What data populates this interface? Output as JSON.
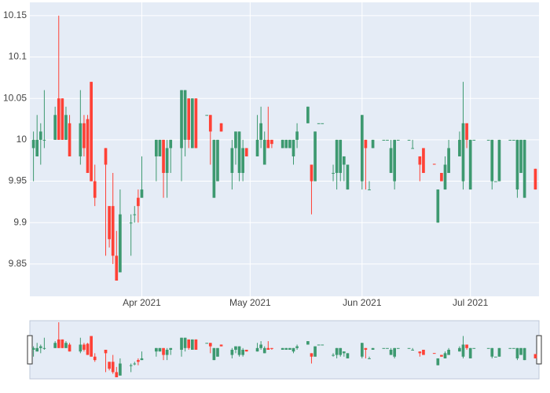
{
  "chart_data": {
    "type": "candlestick",
    "x": [
      "2021-03-02",
      "2021-03-03",
      "2021-03-04",
      "2021-03-05",
      "2021-03-08",
      "2021-03-09",
      "2021-03-10",
      "2021-03-11",
      "2021-03-12",
      "2021-03-15",
      "2021-03-16",
      "2021-03-17",
      "2021-03-18",
      "2021-03-19",
      "2021-03-22",
      "2021-03-23",
      "2021-03-24",
      "2021-03-25",
      "2021-03-26",
      "2021-03-29",
      "2021-03-30",
      "2021-03-31",
      "2021-04-01",
      "2021-04-05",
      "2021-04-06",
      "2021-04-07",
      "2021-04-08",
      "2021-04-09",
      "2021-04-12",
      "2021-04-13",
      "2021-04-14",
      "2021-04-15",
      "2021-04-16",
      "2021-04-19",
      "2021-04-20",
      "2021-04-21",
      "2021-04-22",
      "2021-04-23",
      "2021-04-26",
      "2021-04-27",
      "2021-04-28",
      "2021-04-29",
      "2021-04-30",
      "2021-05-03",
      "2021-05-04",
      "2021-05-05",
      "2021-05-06",
      "2021-05-07",
      "2021-05-10",
      "2021-05-11",
      "2021-05-12",
      "2021-05-13",
      "2021-05-14",
      "2021-05-17",
      "2021-05-18",
      "2021-05-19",
      "2021-05-20",
      "2021-05-21",
      "2021-05-24",
      "2021-05-25",
      "2021-05-26",
      "2021-05-27",
      "2021-05-28",
      "2021-06-01",
      "2021-06-02",
      "2021-06-03",
      "2021-06-04",
      "2021-06-07",
      "2021-06-08",
      "2021-06-09",
      "2021-06-10",
      "2021-06-11",
      "2021-06-14",
      "2021-06-15",
      "2021-06-17",
      "2021-06-18",
      "2021-06-21",
      "2021-06-22",
      "2021-06-23",
      "2021-06-24",
      "2021-06-25",
      "2021-06-28",
      "2021-06-29",
      "2021-06-30",
      "2021-07-01",
      "2021-07-02",
      "2021-07-06",
      "2021-07-07",
      "2021-07-08",
      "2021-07-09",
      "2021-07-12",
      "2021-07-13",
      "2021-07-14",
      "2021-07-15",
      "2021-07-16",
      "2021-07-19"
    ],
    "open": [
      9.99,
      9.98,
      10.0,
      10.0,
      10.0,
      10.05,
      10.05,
      10.0,
      10.02,
      9.98,
      10.02,
      10.025,
      10.07,
      9.95,
      9.99,
      9.92,
      9.92,
      9.86,
      9.84,
      9.9,
      9.91,
      9.93,
      9.93,
      9.98,
      9.98,
      10.0,
      9.96,
      9.99,
      9.99,
      10.0,
      10.05,
      9.99,
      10.05,
      10.03,
      10.03,
      9.93,
      9.95,
      10.02,
      9.96,
      9.99,
      9.96,
      9.96,
      9.99,
      9.98,
      10.0,
      9.97,
      10.0,
      10.0,
      9.99,
      9.99,
      9.99,
      9.98,
      10.0,
      10.02,
      9.97,
      9.95,
      10.02,
      10.02,
      9.96,
      9.96,
      9.96,
      9.97,
      9.94,
      9.95,
      10.0,
      9.94,
      9.99,
      10.0,
      10.0,
      9.96,
      9.95,
      10.0,
      10.0,
      9.99,
      9.98,
      9.99,
      9.971,
      9.9,
      9.96,
      9.94,
      9.96,
      9.98,
      9.95,
      10.02,
      9.94,
      10.0,
      10.0,
      9.95,
      9.95,
      9.95,
      10.0,
      10.0,
      9.94,
      9.96,
      9.93,
      9.965
    ],
    "high": [
      10.01,
      10.03,
      10.02,
      10.06,
      10.04,
      10.15,
      10.05,
      10.04,
      10.03,
      10.06,
      10.03,
      10.03,
      10.07,
      9.97,
      9.99,
      9.92,
      9.96,
      9.89,
      9.94,
      9.91,
      9.92,
      9.94,
      9.98,
      10.0,
      10.0,
      10.0,
      10.0,
      10.0,
      10.06,
      10.06,
      10.05,
      10.05,
      10.05,
      10.03,
      10.03,
      10.0,
      10.0,
      10.02,
      10.0,
      10.01,
      10.01,
      10.0,
      9.99,
      10.03,
      10.04,
      10.01,
      10.04,
      10.0,
      10.0,
      10.0,
      10.0,
      10.0,
      10.02,
      10.04,
      9.97,
      10.01,
      10.02,
      10.02,
      9.97,
      10.0,
      10.0,
      9.98,
      9.97,
      10.03,
      10.0,
      9.95,
      10.0,
      10.0,
      10.0,
      10.0,
      10.0,
      10.0,
      10.0,
      10.0,
      9.98,
      9.99,
      9.971,
      9.94,
      9.96,
      9.98,
      10.0,
      10.01,
      10.07,
      10.02,
      10.0,
      10.0,
      10.0,
      10.0,
      9.95,
      10.0,
      10.0,
      10.0,
      10.0,
      10.0,
      10.0,
      9.965
    ],
    "low": [
      9.95,
      9.98,
      9.97,
      9.99,
      10.0,
      10.0,
      10.0,
      10.0,
      9.98,
      9.97,
      9.98,
      9.96,
      9.95,
      9.92,
      9.86,
      9.87,
      9.85,
      9.83,
      9.84,
      9.86,
      9.9,
      9.9,
      9.93,
      9.95,
      9.98,
      9.93,
      9.93,
      9.96,
      9.95,
      9.98,
      9.99,
      9.99,
      9.99,
      10.03,
      9.97,
      9.93,
      9.95,
      10.01,
      9.94,
      9.97,
      9.95,
      9.95,
      9.98,
      9.98,
      9.99,
      9.97,
      9.99,
      9.99,
      9.99,
      9.99,
      9.99,
      9.97,
      9.99,
      10.02,
      9.91,
      9.95,
      10.02,
      10.02,
      9.95,
      9.94,
      9.95,
      9.95,
      9.94,
      9.94,
      9.94,
      9.94,
      9.99,
      10.0,
      10.0,
      9.96,
      9.94,
      10.0,
      10.0,
      9.99,
      9.95,
      9.96,
      9.97,
      9.9,
      9.95,
      9.94,
      9.96,
      9.98,
      9.94,
      9.99,
      9.94,
      10.0,
      10.0,
      9.94,
      9.95,
      9.95,
      10.0,
      10.0,
      9.93,
      9.96,
      9.93,
      9.94
    ],
    "close": [
      10.0,
      10.0,
      10.01,
      10.0,
      10.03,
      10.0,
      10.0,
      10.03,
      9.98,
      10.02,
      9.99,
      9.96,
      9.95,
      9.93,
      9.97,
      9.88,
      9.86,
      9.83,
      9.91,
      9.9,
      9.91,
      9.92,
      9.94,
      10.0,
      10.0,
      9.96,
      9.99,
      10.0,
      10.06,
      10.06,
      10.0,
      10.05,
      9.99,
      10.03,
      10.01,
      10.0,
      10.0,
      10.01,
      9.99,
      10.01,
      10.01,
      9.99,
      9.98,
      10.0,
      10.02,
      10.0,
      9.99,
      9.995,
      10.0,
      10.0,
      10.0,
      10.0,
      10.01,
      10.04,
      9.95,
      10.01,
      10.02,
      10.02,
      9.96,
      10.0,
      10.0,
      9.98,
      9.97,
      10.03,
      9.99,
      9.94,
      10.0,
      10.0,
      10.0,
      9.99,
      10.0,
      10.0,
      10.0,
      9.99,
      9.97,
      9.96,
      9.97,
      9.94,
      9.95,
      9.97,
      9.99,
      10.0,
      10.02,
      10.0,
      10.0,
      10.0,
      10.0,
      10.0,
      9.95,
      10.0,
      10.0,
      10.0,
      10.0,
      10.0,
      10.0,
      9.94
    ],
    "increasing_color": "#3d9970",
    "decreasing_color": "#ff4136",
    "xlim": [
      "2021-03-01",
      "2021-07-20"
    ],
    "xticks": [
      {
        "value": "2021-04-01",
        "label": "Apr 2021"
      },
      {
        "value": "2021-05-01",
        "label": "May 2021"
      },
      {
        "value": "2021-06-01",
        "label": "Jun 2021"
      },
      {
        "value": "2021-07-01",
        "label": "Jul 2021"
      }
    ],
    "ylim": [
      9.811,
      10.166
    ],
    "yticks": [
      9.85,
      9.9,
      9.95,
      10,
      10.05,
      10.1,
      10.15
    ],
    "grid": true,
    "rangeslider": true
  }
}
